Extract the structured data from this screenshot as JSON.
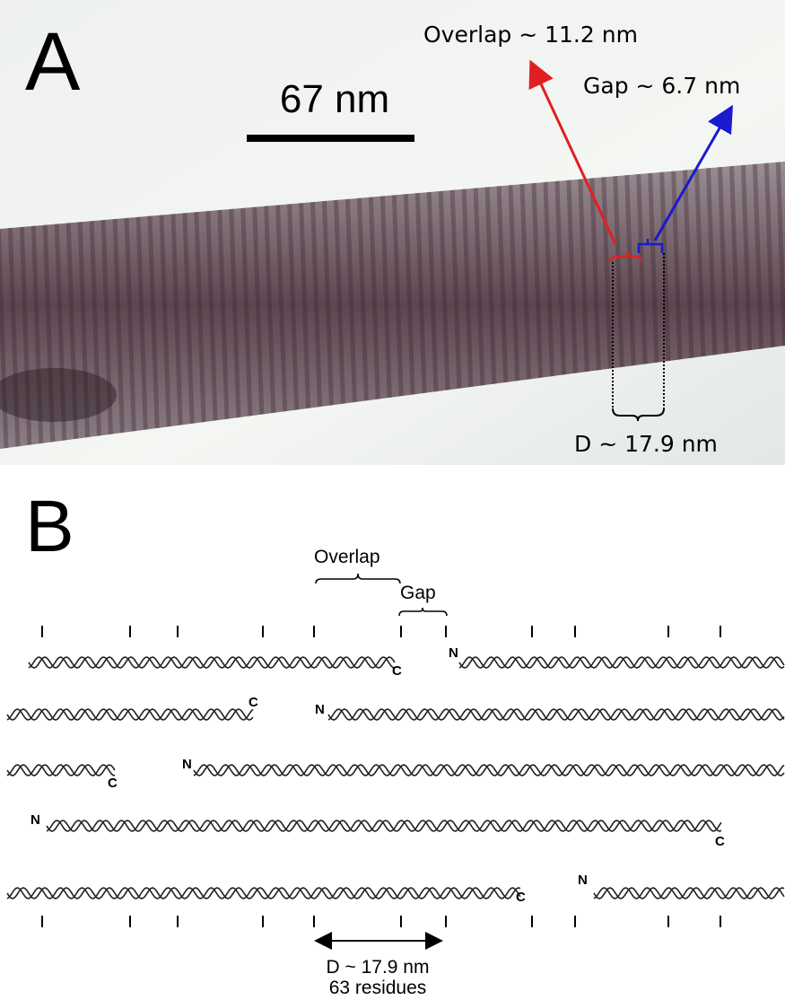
{
  "panel_a": {
    "label": "A",
    "scale_bar": "67 nm",
    "overlap": "Overlap ~ 11.2 nm",
    "gap": "Gap ~ 6.7 nm",
    "period": "D ~ 17.9 nm"
  },
  "panel_b": {
    "label": "B",
    "overlap": "Overlap",
    "gap": "Gap",
    "rows": [
      [
        "C",
        "N"
      ],
      [
        "C",
        "N"
      ],
      [
        "C",
        "N"
      ],
      [
        "N",
        "C"
      ],
      [
        "C",
        "N"
      ]
    ],
    "period": "D ~ 17.9 nm",
    "residues": "63 residues"
  }
}
